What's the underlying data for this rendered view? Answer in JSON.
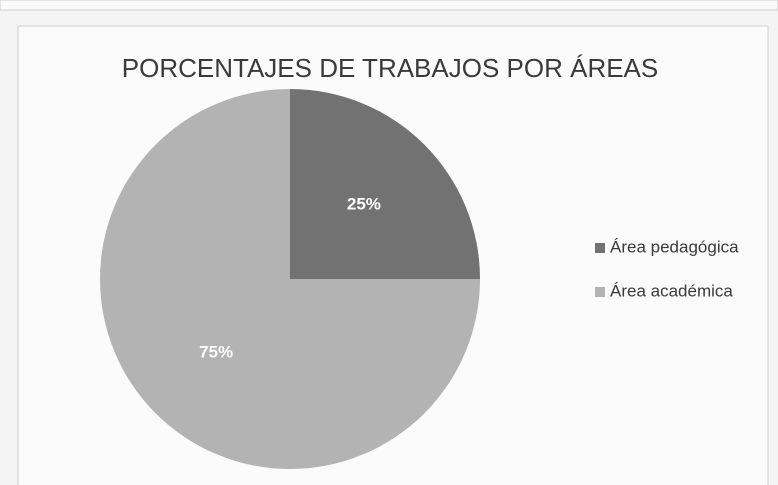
{
  "chart_data": {
    "type": "pie",
    "title": "PORCENTAJES DE TRABAJOS POR ÁREAS",
    "categories": [
      "Área pedagógica",
      "Área académica"
    ],
    "values": [
      25,
      75
    ],
    "value_labels": [
      "25%",
      "75%"
    ],
    "colors": [
      "#727272",
      "#b3b3b3"
    ],
    "legend": "right"
  }
}
